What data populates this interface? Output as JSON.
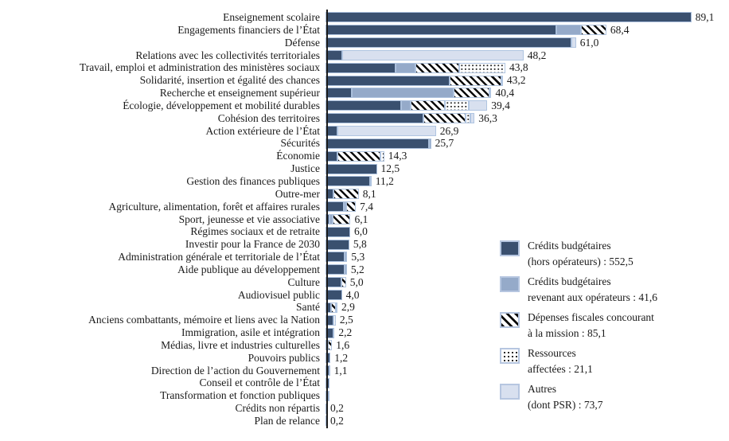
{
  "colors": {
    "budgetaires": "#3A506F",
    "operateurs": "#95AAC9",
    "autres": "#D8E0EF",
    "segment_border": "#AEC3DF",
    "hatch_stripe": "#0A0A0A",
    "dot_color": "#1A1A1A",
    "axis": "#1C1C1C",
    "text": "#1A1A1A"
  },
  "chart_data": {
    "type": "bar",
    "orientation": "horizontal",
    "stacked": true,
    "value_unit": "milliards d’euros",
    "xlim": [
      0,
      96
    ],
    "grid": false,
    "legend_position": "bottom-right",
    "series_keys": [
      "budgetaires",
      "operateurs",
      "fiscales",
      "ressources",
      "autres"
    ],
    "legend": [
      {
        "key": "budgetaires",
        "line1": "Crédits budgétaires",
        "line2": "(hors opérateurs) : 552,5",
        "total": 552.5
      },
      {
        "key": "operateurs",
        "line1": "Crédits budgétaires",
        "line2": "revenant aux opérateurs :  41,6",
        "total": 41.6
      },
      {
        "key": "fiscales",
        "line1": "Dépenses fiscales concourant",
        "line2": "à la mission :  85,1",
        "total": 85.1
      },
      {
        "key": "ressources",
        "line1": "Ressources",
        "line2": "affectées :  21,1",
        "total": 21.1
      },
      {
        "key": "autres",
        "line1": "Autres",
        "line2": "(dont PSR) :  73,7",
        "total": 73.7
      }
    ],
    "rows": [
      {
        "category": "Enseignement scolaire",
        "segments": [
          89.1,
          0,
          0,
          0,
          0
        ],
        "total": 89.1,
        "label": "89,1"
      },
      {
        "category": "Engagements financiers de l’État",
        "segments": [
          56.2,
          6.0,
          6.2,
          0,
          0
        ],
        "total": 68.4,
        "label": "68,4"
      },
      {
        "category": "Défense",
        "segments": [
          59.8,
          0,
          0,
          0,
          1.2
        ],
        "total": 61.0,
        "label": "61,0"
      },
      {
        "category": "Relations avec les collectivités territoriales",
        "segments": [
          4.0,
          0,
          0,
          0,
          44.2
        ],
        "total": 48.2,
        "label": "48,2"
      },
      {
        "category": "Travail, emploi et administration des ministères sociaux",
        "segments": [
          17.0,
          4.9,
          10.7,
          11.2,
          0
        ],
        "total": 43.8,
        "label": "43,8"
      },
      {
        "category": "Solidarité, insertion et égalité des chances",
        "segments": [
          30.2,
          0,
          12.6,
          0,
          0.4
        ],
        "total": 43.2,
        "label": "43,2"
      },
      {
        "category": "Recherche et enseignement supérieur",
        "segments": [
          6.4,
          24.8,
          8.7,
          0,
          0.5
        ],
        "total": 40.4,
        "label": "40,4"
      },
      {
        "category": "Écologie, développement et mobilité durables",
        "segments": [
          18.4,
          2.3,
          8.4,
          5.8,
          4.5
        ],
        "total": 39.4,
        "label": "39,4"
      },
      {
        "category": "Cohésion des territoires",
        "segments": [
          23.8,
          0,
          10.3,
          1.2,
          1.0
        ],
        "total": 36.3,
        "label": "36,3"
      },
      {
        "category": "Action extérieure de l’État",
        "segments": [
          2.9,
          0,
          0,
          0,
          24.0
        ],
        "total": 26.9,
        "label": "26,9"
      },
      {
        "category": "Sécurités",
        "segments": [
          25.2,
          0.5,
          0,
          0,
          0
        ],
        "total": 25.7,
        "label": "25,7"
      },
      {
        "category": "Économie",
        "segments": [
          3.0,
          0,
          10.3,
          1.0,
          0
        ],
        "total": 14.3,
        "label": "14,3"
      },
      {
        "category": "Justice",
        "segments": [
          12.5,
          0,
          0,
          0,
          0
        ],
        "total": 12.5,
        "label": "12,5"
      },
      {
        "category": "Gestion des finances publiques",
        "segments": [
          10.9,
          0.3,
          0,
          0,
          0
        ],
        "total": 11.2,
        "label": "11,2"
      },
      {
        "category": "Outre-mer",
        "segments": [
          1.9,
          0,
          6.2,
          0,
          0
        ],
        "total": 8.1,
        "label": "8,1"
      },
      {
        "category": "Agriculture, alimentation, forêt et affaires rurales",
        "segments": [
          4.5,
          0.5,
          2.4,
          0,
          0
        ],
        "total": 7.4,
        "label": "7,4"
      },
      {
        "category": "Sport, jeunesse et vie associative",
        "segments": [
          0.9,
          0.8,
          4.4,
          0,
          0
        ],
        "total": 6.1,
        "label": "6,1"
      },
      {
        "category": "Régimes sociaux et de retraite",
        "segments": [
          6.0,
          0,
          0,
          0,
          0
        ],
        "total": 6.0,
        "label": "6,0"
      },
      {
        "category": "Investir pour la France de 2030",
        "segments": [
          5.8,
          0,
          0,
          0,
          0
        ],
        "total": 5.8,
        "label": "5,8"
      },
      {
        "category": "Administration générale et territoriale de l’État",
        "segments": [
          4.7,
          0.6,
          0,
          0,
          0
        ],
        "total": 5.3,
        "label": "5,3"
      },
      {
        "category": "Aide publique au développement",
        "segments": [
          4.7,
          0.5,
          0,
          0,
          0
        ],
        "total": 5.2,
        "label": "5,2"
      },
      {
        "category": "Culture",
        "segments": [
          3.8,
          0,
          1.2,
          0,
          0
        ],
        "total": 5.0,
        "label": "5,0"
      },
      {
        "category": "Audiovisuel public",
        "segments": [
          4.0,
          0,
          0,
          0,
          0
        ],
        "total": 4.0,
        "label": "4,0"
      },
      {
        "category": "Santé",
        "segments": [
          1.3,
          0,
          1.2,
          0,
          0.4
        ],
        "total": 2.9,
        "label": "2,9"
      },
      {
        "category": "Anciens combattants, mémoire et liens avec la Nation",
        "segments": [
          1.9,
          0,
          0,
          0.6,
          0
        ],
        "total": 2.5,
        "label": "2,5"
      },
      {
        "category": "Immigration, asile et intégration",
        "segments": [
          2.0,
          0.2,
          0,
          0,
          0
        ],
        "total": 2.2,
        "label": "2,2"
      },
      {
        "category": "Médias, livre et industries culturelles",
        "segments": [
          0.6,
          0,
          1.0,
          0,
          0
        ],
        "total": 1.6,
        "label": "1,6"
      },
      {
        "category": "Pouvoirs publics",
        "segments": [
          1.2,
          0,
          0,
          0,
          0
        ],
        "total": 1.2,
        "label": "1,2"
      },
      {
        "category": "Direction de l’action du Gouvernement",
        "segments": [
          0.9,
          0.2,
          0,
          0,
          0
        ],
        "total": 1.1,
        "label": "1,1"
      },
      {
        "category": "Conseil et contrôle de l’État",
        "segments": [
          0.9,
          0,
          0,
          0,
          0
        ],
        "total": 0.9,
        "label": ""
      },
      {
        "category": "Transformation et fonction publiques",
        "segments": [
          0,
          1.0,
          0,
          0,
          0
        ],
        "total": 1.0,
        "label": ""
      },
      {
        "category": "Crédits non répartis",
        "segments": [
          0.2,
          0,
          0,
          0,
          0
        ],
        "total": 0.2,
        "label": "0,2"
      },
      {
        "category": "Plan de relance",
        "segments": [
          0.2,
          0,
          0,
          0,
          0
        ],
        "total": 0.2,
        "label": "0,2"
      }
    ]
  }
}
